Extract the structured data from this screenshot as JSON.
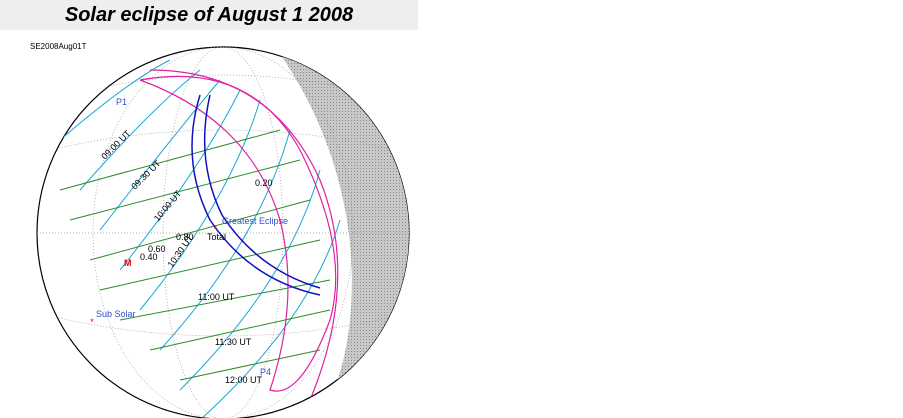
{
  "header": {
    "title": "Solar eclipse of August 1 2008",
    "code": "SE2008Aug01T"
  },
  "labels": [
    "P1",
    "09:00 UT",
    "09:30 UT",
    "10:00 UT",
    "10:30 UT",
    "11:00 UT",
    "11:30 UT",
    "12:00 UT",
    "0.20",
    "0.40",
    "0.60",
    "0.80",
    "Greatest Eclipse",
    "Total",
    "Sub Solar",
    "M",
    "P4"
  ]
}
